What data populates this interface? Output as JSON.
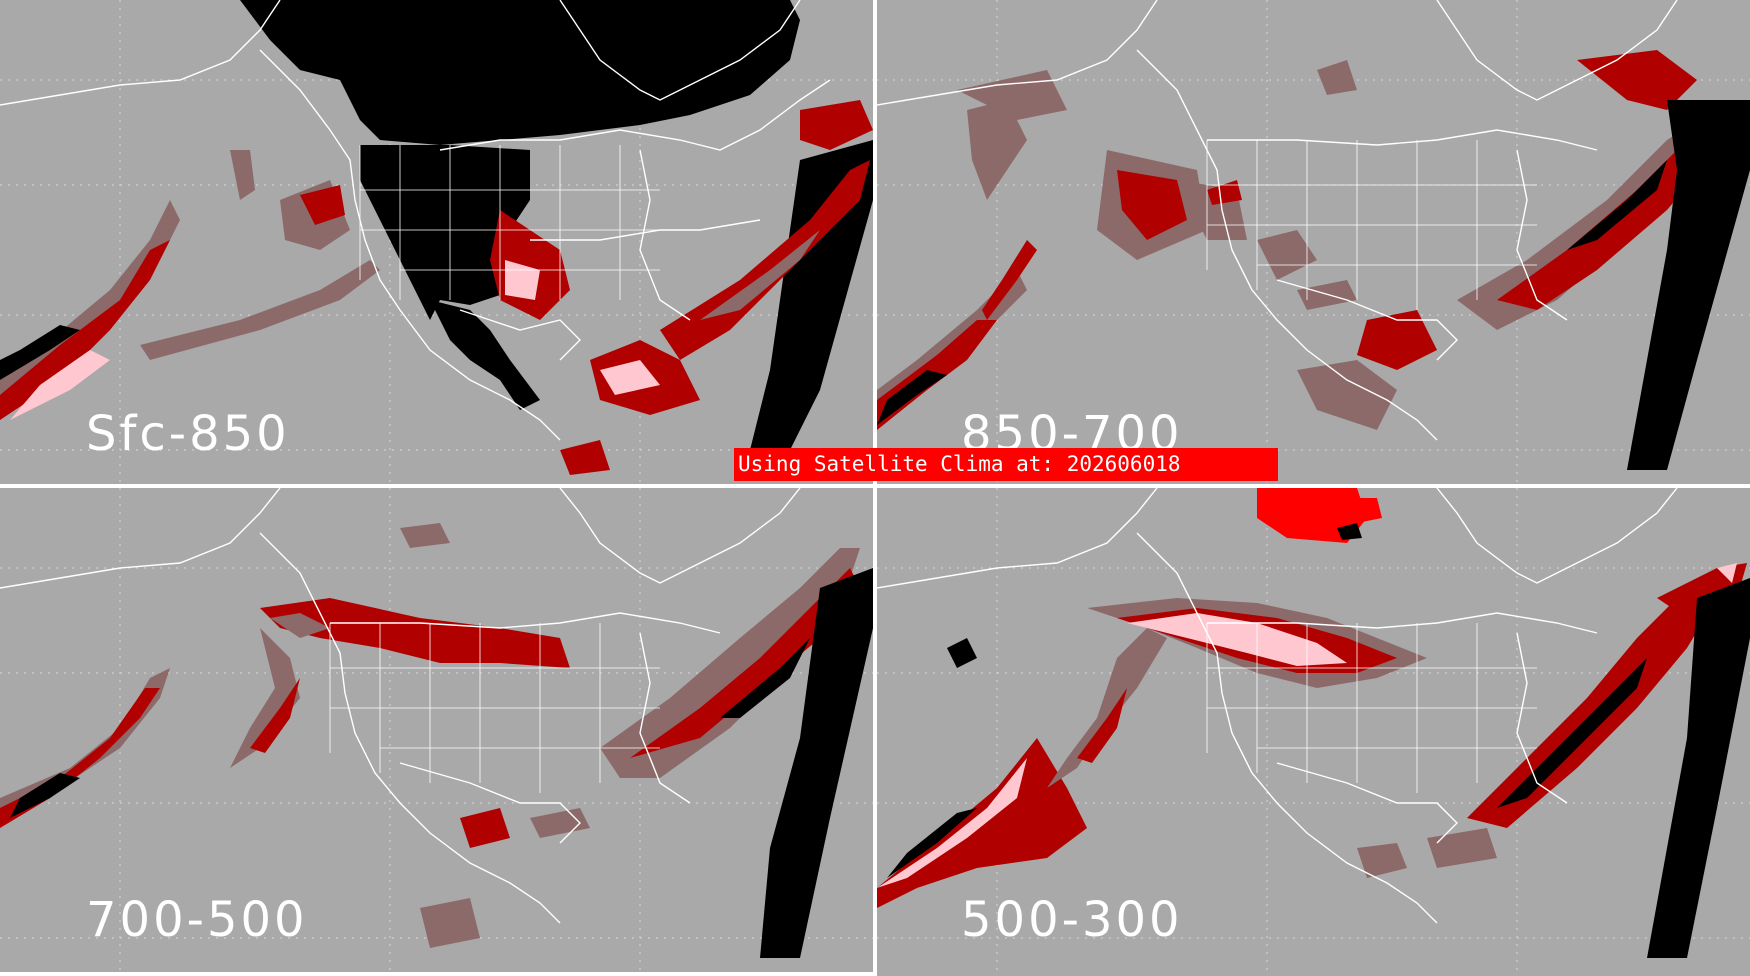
{
  "panels": [
    {
      "label": "Sfc-850"
    },
    {
      "label": "850-700"
    },
    {
      "label": "700-500"
    },
    {
      "label": "500-300"
    }
  ],
  "banner": {
    "text": "Using Satellite Clima at: 202606018"
  },
  "colors": {
    "background": "#a9a9a9",
    "coast": "#ffffff",
    "dark_red": "#b00000",
    "brown_red": "#8c6a6a",
    "pink": "#ffc8d0",
    "black": "#000000",
    "bright_red": "#ff0000"
  }
}
